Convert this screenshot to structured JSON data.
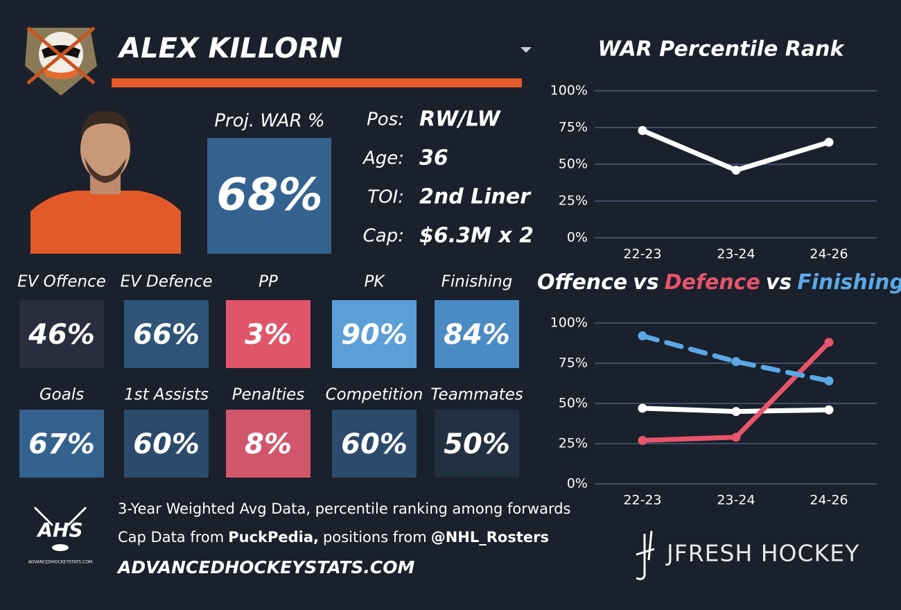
{
  "player": {
    "name": "ALEX KILLORN",
    "proj_label": "Proj. WAR %",
    "proj_value": "68%",
    "proj_color": "#33628f",
    "info": [
      {
        "label": "Pos:",
        "value": "RW/LW"
      },
      {
        "label": "Age:",
        "value": "36"
      },
      {
        "label": "TOI:",
        "value": "2nd Liner"
      },
      {
        "label": "Cap:",
        "value": "$6.3M x 2"
      }
    ]
  },
  "tiles": [
    {
      "label": "EV Offence",
      "value": "46%",
      "color": "#2a2d3e"
    },
    {
      "label": "EV Defence",
      "value": "66%",
      "color": "#2f5478"
    },
    {
      "label": "PP",
      "value": "3%",
      "color": "#e0556a"
    },
    {
      "label": "PK",
      "value": "90%",
      "color": "#5b9fd6"
    },
    {
      "label": "Finishing",
      "value": "84%",
      "color": "#4b8bc4"
    },
    {
      "label": "Goals",
      "value": "67%",
      "color": "#33628f"
    },
    {
      "label": "1st Assists",
      "value": "60%",
      "color": "#2c4a6a"
    },
    {
      "label": "Penalties",
      "value": "8%",
      "color": "#d2566b"
    },
    {
      "label": "Competition",
      "value": "60%",
      "color": "#2c4a6a"
    },
    {
      "label": "Teammates",
      "value": "50%",
      "color": "#23303f"
    }
  ],
  "footer": {
    "note": "3-Year Weighted Avg Data, percentile ranking among forwards",
    "cap_prefix": "Cap Data from",
    "cap_source": "PuckPedia,",
    "pos_prefix": "positions from",
    "pos_source": "@NHL_Rosters",
    "site": "ADVANCEDHOCKEYSTATS.COM",
    "logo_text": "AHS",
    "logo_caption": "ADVANCEDHOCKEYSTATS.COM",
    "brand": "JFRESH HOCKEY"
  },
  "chart_data": [
    {
      "type": "line",
      "title": "WAR Percentile Rank",
      "categories": [
        "22-23",
        "23-24",
        "24-26"
      ],
      "values": [
        73,
        46,
        65
      ],
      "color": "#ffffff",
      "ylim": [
        0,
        100
      ],
      "yticks": [
        {
          "value": 0,
          "label": "0%"
        },
        {
          "value": 25,
          "label": "25%"
        },
        {
          "value": 50,
          "label": "50%"
        },
        {
          "value": 75,
          "label": "75%"
        },
        {
          "value": 100,
          "label": "100%"
        }
      ],
      "grid": true
    },
    {
      "type": "line",
      "title_joiner": "vs",
      "categories": [
        "22-23",
        "23-24",
        "24-26"
      ],
      "series": [
        {
          "name": "Offence",
          "color": "#ffffff",
          "dashed": false,
          "values": [
            47,
            45,
            46
          ]
        },
        {
          "name": "Defence",
          "color": "#e8546a",
          "dashed": false,
          "values": [
            27,
            29,
            88
          ]
        },
        {
          "name": "Finishing",
          "color": "#5aa9e6",
          "dashed": true,
          "values": [
            92,
            76,
            64
          ]
        }
      ],
      "ylim": [
        0,
        100
      ],
      "yticks": [
        {
          "value": 0,
          "label": "0%"
        },
        {
          "value": 25,
          "label": "25%"
        },
        {
          "value": 50,
          "label": "50%"
        },
        {
          "value": 75,
          "label": "75%"
        },
        {
          "value": 100,
          "label": "100%"
        }
      ],
      "grid": true
    }
  ]
}
